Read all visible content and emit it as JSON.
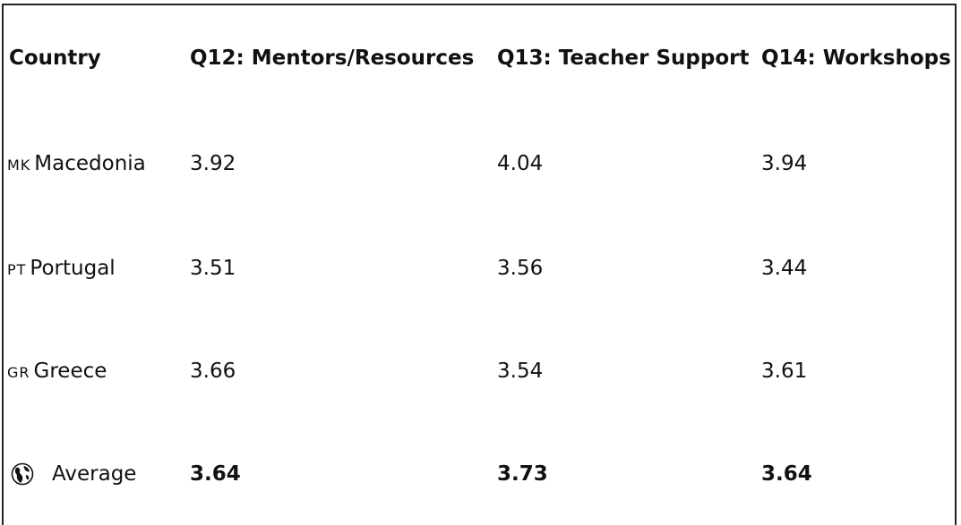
{
  "table": {
    "header": [
      "Country",
      "Q12: Mentors/Resources",
      "Q13: Teacher Support",
      "Q14: Workshops"
    ],
    "rows": [
      {
        "flag": "MK",
        "country": "Macedonia",
        "values": [
          3.92,
          4.04,
          3.94
        ]
      },
      {
        "flag": "PT",
        "country": "Portugal",
        "values": [
          3.51,
          3.56,
          3.44
        ]
      },
      {
        "flag": "GR",
        "country": "Greece",
        "values": [
          3.66,
          3.54,
          3.61
        ]
      },
      {
        "country": "Average",
        "values": [
          3.64,
          3.73,
          3.64
        ],
        "bold": true
      }
    ]
  }
}
